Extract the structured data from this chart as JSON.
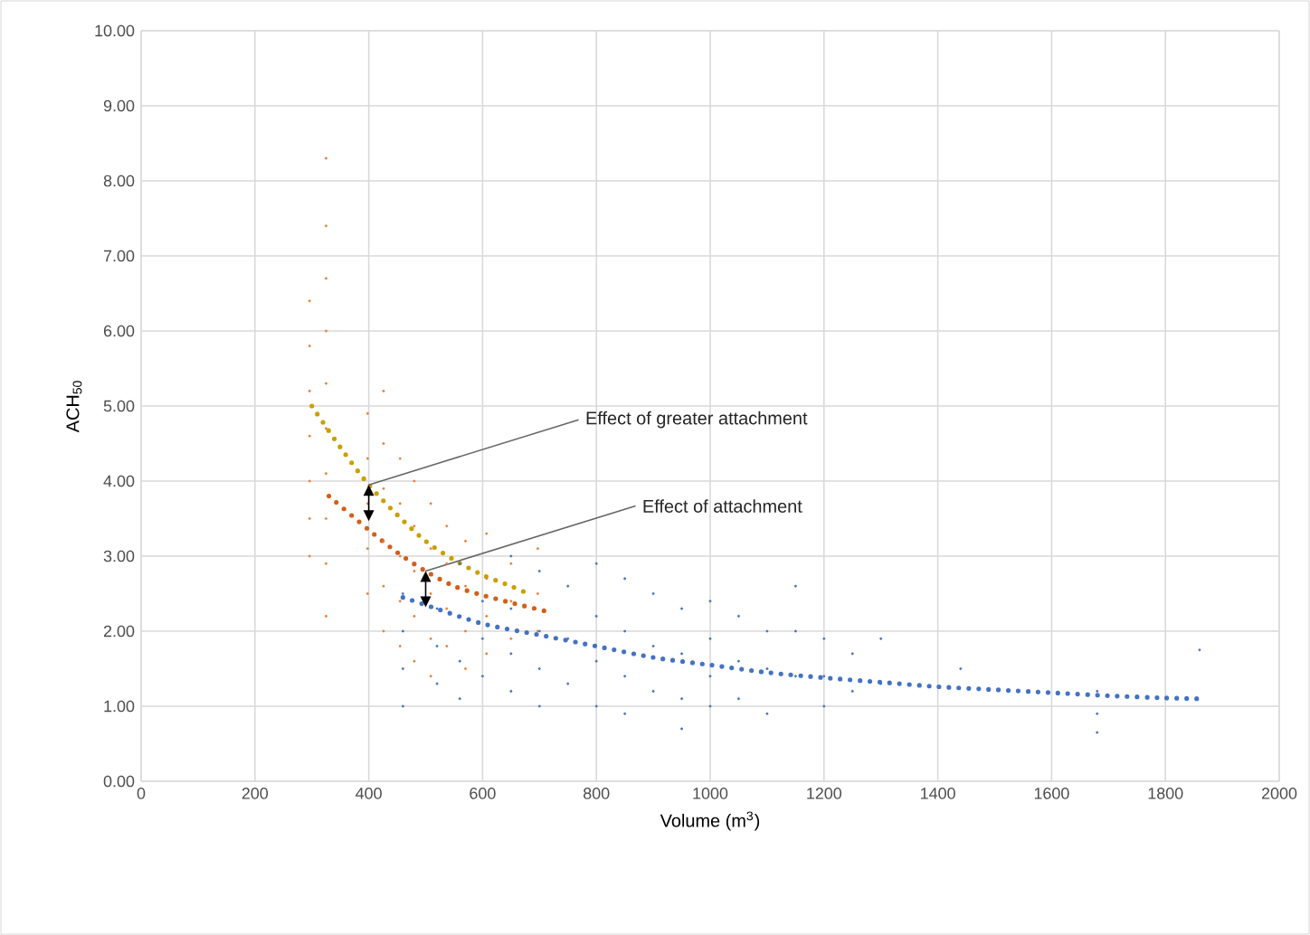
{
  "chart_data": {
    "type": "scatter",
    "xlabel": "Volume (m$^{3}$)",
    "ylabel": "ACH$_{50}$",
    "xlim": [
      0,
      2000
    ],
    "ylim": [
      0,
      10
    ],
    "xticks": [
      0,
      200,
      400,
      600,
      800,
      1000,
      1200,
      1400,
      1600,
      1800,
      2000
    ],
    "yticks": [
      {
        "value": 0,
        "label": "0.00"
      },
      {
        "value": 1,
        "label": "1.00"
      },
      {
        "value": 2,
        "label": "2.00"
      },
      {
        "value": 3,
        "label": "3.00"
      },
      {
        "value": 4,
        "label": "4.00"
      },
      {
        "value": 5,
        "label": "5.00"
      },
      {
        "value": 6,
        "label": "6.00"
      },
      {
        "value": 7,
        "label": "7.00"
      },
      {
        "value": 8,
        "label": "8.00"
      },
      {
        "value": 9,
        "label": "9.00"
      },
      {
        "value": 10,
        "label": "10.00"
      }
    ],
    "grid": true,
    "series": [
      {
        "color": "#ed7d31",
        "x": [
          296,
          296,
          296,
          296,
          296,
          296,
          296,
          325,
          325,
          325,
          325,
          325,
          325,
          325,
          325,
          325,
          325,
          398,
          398,
          398,
          398,
          398,
          426,
          426,
          426,
          426,
          426,
          426,
          455,
          455,
          455,
          455,
          455,
          480,
          480,
          480,
          480,
          480,
          509,
          509,
          509,
          509,
          509,
          537,
          537,
          537,
          537,
          570,
          570,
          570,
          570,
          607,
          607,
          607,
          607,
          650,
          650,
          650,
          697,
          697,
          697
        ],
        "values": [
          6.4,
          5.8,
          5.2,
          4.6,
          4.0,
          3.5,
          3.0,
          8.3,
          7.4,
          6.7,
          6.0,
          5.3,
          4.7,
          4.1,
          3.5,
          2.9,
          2.2,
          4.9,
          4.3,
          3.7,
          3.1,
          2.5,
          5.2,
          4.5,
          3.9,
          3.2,
          2.6,
          2.0,
          4.3,
          3.7,
          3.0,
          2.4,
          1.8,
          4.0,
          3.4,
          2.8,
          2.2,
          1.6,
          3.7,
          3.1,
          2.5,
          1.9,
          1.4,
          3.4,
          2.9,
          2.3,
          1.8,
          3.2,
          2.6,
          2.0,
          1.5,
          3.3,
          2.7,
          2.2,
          1.7,
          2.9,
          2.4,
          1.9,
          3.1,
          2.5,
          2.0
        ]
      },
      {
        "color": "#4472c4",
        "x": [
          460,
          460,
          460,
          460,
          520,
          520,
          520,
          560,
          560,
          560,
          560,
          600,
          600,
          600,
          650,
          650,
          650,
          650,
          700,
          700,
          700,
          700,
          750,
          750,
          750,
          800,
          800,
          800,
          800,
          850,
          850,
          850,
          850,
          900,
          900,
          900,
          950,
          950,
          950,
          950,
          1000,
          1000,
          1000,
          1000,
          1050,
          1050,
          1050,
          1100,
          1100,
          1100,
          1150,
          1150,
          1150,
          1200,
          1200,
          1200,
          1250,
          1250,
          1300,
          1300,
          1440,
          1680,
          1680,
          1680,
          1860
        ],
        "values": [
          2.5,
          2.0,
          1.5,
          1.0,
          2.3,
          1.8,
          1.3,
          2.9,
          2.2,
          1.6,
          1.1,
          2.4,
          1.9,
          1.4,
          3.0,
          2.3,
          1.7,
          1.2,
          2.8,
          2.0,
          1.5,
          1.0,
          2.6,
          1.9,
          1.3,
          2.9,
          2.2,
          1.6,
          1.0,
          2.7,
          2.0,
          1.4,
          0.9,
          2.5,
          1.8,
          1.2,
          2.3,
          1.7,
          1.1,
          0.7,
          2.4,
          1.9,
          1.4,
          1.0,
          2.2,
          1.6,
          1.1,
          2.0,
          1.5,
          0.9,
          2.6,
          2.0,
          1.4,
          1.9,
          1.4,
          1.0,
          1.7,
          1.2,
          1.9,
          1.3,
          1.5,
          1.2,
          0.9,
          0.65,
          1.75
        ]
      },
      {
        "type": "line",
        "line_style": "dotted",
        "color": "#c9a000",
        "x": [
          300,
          350,
          400,
          450,
          500,
          550,
          600,
          650,
          680
        ],
        "values": [
          5.0,
          4.45,
          3.95,
          3.55,
          3.2,
          2.95,
          2.75,
          2.6,
          2.5
        ]
      },
      {
        "type": "line",
        "line_style": "dotted",
        "color": "#d35f1a",
        "x": [
          330,
          400,
          450,
          500,
          550,
          600,
          650,
          720
        ],
        "values": [
          3.8,
          3.35,
          3.05,
          2.8,
          2.6,
          2.48,
          2.38,
          2.25
        ]
      },
      {
        "type": "line",
        "line_style": "dotted",
        "color": "#4472c4",
        "x": [
          460,
          500,
          600,
          700,
          800,
          900,
          1000,
          1100,
          1200,
          1300,
          1400,
          1500,
          1600,
          1700,
          1800,
          1860
        ],
        "values": [
          2.45,
          2.35,
          2.1,
          1.95,
          1.8,
          1.65,
          1.55,
          1.45,
          1.38,
          1.32,
          1.26,
          1.22,
          1.18,
          1.14,
          1.11,
          1.1
        ]
      }
    ],
    "annotations": [
      {
        "text": "Effect of greater attachment",
        "x": 400,
        "y": 3.95
      },
      {
        "text": "Effect of attachment",
        "x": 500,
        "y": 2.8
      }
    ]
  }
}
